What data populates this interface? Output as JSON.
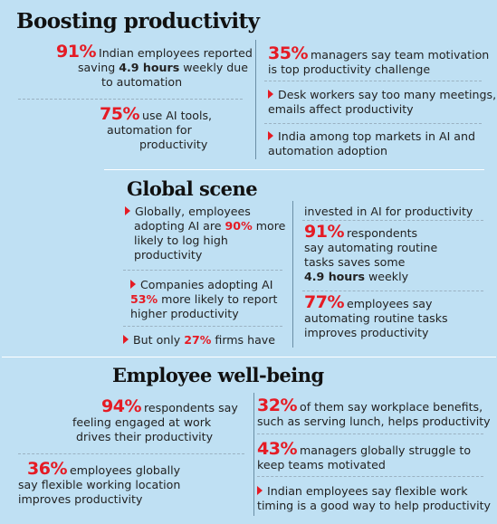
{
  "s1": {
    "title": "Boosting productivity",
    "a_big": "91%",
    "a_l1": "Indian employees reported",
    "a_l2_pre": "saving",
    "a_l2_bold": "4.9 hours",
    "a_l2_post": "weekly due",
    "a_l3": "to automation",
    "b_big": "75%",
    "b_l1": "use AI tools,",
    "b_l2": "automation for",
    "b_l3": "productivity",
    "c_big": "35%",
    "c_l1": "managers say team motivation",
    "c_l2": "is top productivity challenge",
    "d_l1": "Desk workers say too many meetings,",
    "d_l2": "emails affect productivity",
    "e_l1": "India among top markets in AI and",
    "e_l2": "automation adoption"
  },
  "s2": {
    "title": "Global scene",
    "a_l1": "Globally, employees",
    "a_l2_pre": "adopting AI are",
    "a_l2_red": "90%",
    "a_l2_post": "more",
    "a_l3": "likely to log high",
    "a_l4": "productivity",
    "b_l1": "Companies adopting AI",
    "b_l2_red": "53%",
    "b_l2_post": "more likely to report",
    "b_l3": "higher productivity",
    "c_pre": "But only",
    "c_red": "27%",
    "c_post": "firms have",
    "d_l1": "invested in AI for productivity",
    "e_big": "91%",
    "e_l1": "respondents",
    "e_l2": "say automating routine",
    "e_l3": "tasks  saves some",
    "e_l4_bold": "4.9 hours",
    "e_l4_post": "weekly",
    "f_big": "77%",
    "f_l1": "employees say",
    "f_l2": "automating routine tasks",
    "f_l3": "improves productivity"
  },
  "s3": {
    "title": "Employee well-being",
    "a_big": "94%",
    "a_l1": "respondents say",
    "a_l2": "feeling engaged at work",
    "a_l3": "drives their productivity",
    "b_big": "36%",
    "b_l1": "employees globally",
    "b_l2": "say flexible working location",
    "b_l3": "improves productivity",
    "c_big": "32%",
    "c_l1": "of them say workplace benefits,",
    "c_l2": "such as serving lunch, helps productivity",
    "d_big": "43%",
    "d_l1": "managers globally struggle to",
    "d_l2": "keep teams motivated",
    "e_l1": "Indian employees say flexible work",
    "e_l2": "timing is a good way to help productivity"
  },
  "colors": {
    "accent": "#e51b24",
    "background": "#bfe0f3"
  }
}
